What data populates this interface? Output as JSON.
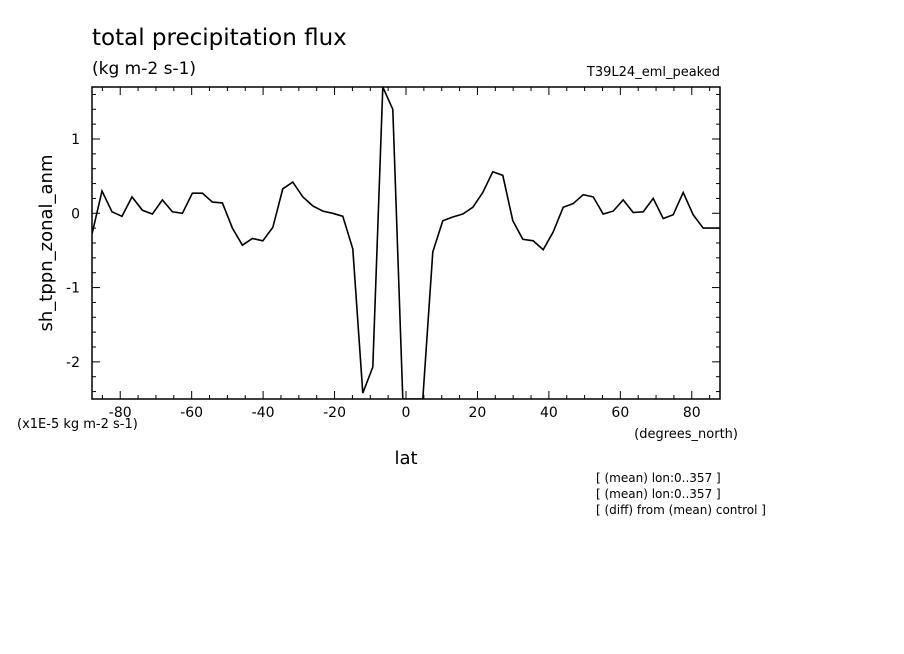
{
  "chart_data": {
    "type": "line",
    "title": "total precipitation flux",
    "subtitle": "(kg m-2 s-1)",
    "dataset_label": "T39L24_eml_peaked",
    "xlabel": "lat",
    "xunits": "(degrees_north)",
    "ylabel": "sh_tppn_zonal_anm",
    "yunits": "(x1E-5 kg m-2 s-1)",
    "xlim": [
      -87.9,
      87.9
    ],
    "ylim": [
      -2.5,
      1.7
    ],
    "xticks": [
      -80,
      -60,
      -40,
      -20,
      0,
      20,
      40,
      60,
      80
    ],
    "xtick_labels": [
      "-80",
      "-60",
      "-40",
      "-20",
      "0",
      "20",
      "40",
      "60",
      "80"
    ],
    "yticks": [
      -2,
      -1,
      0,
      1
    ],
    "ytick_labels": [
      "-2",
      "-1",
      "0",
      "1"
    ],
    "x": [
      -87.9,
      -85.1,
      -82.3,
      -79.5,
      -76.7,
      -73.8,
      -71.0,
      -68.2,
      -65.4,
      -62.6,
      -59.8,
      -57.0,
      -54.2,
      -51.4,
      -48.6,
      -45.8,
      -43.0,
      -40.1,
      -37.3,
      -34.5,
      -31.7,
      -28.9,
      -26.1,
      -23.3,
      -20.5,
      -17.7,
      -14.9,
      -12.1,
      -9.3,
      -6.5,
      -3.7,
      -0.9,
      1.9,
      4.7,
      7.5,
      10.3,
      13.1,
      15.9,
      18.7,
      21.5,
      24.3,
      27.1,
      29.9,
      32.7,
      35.6,
      38.4,
      41.2,
      44.0,
      46.8,
      49.6,
      52.4,
      55.2,
      58.0,
      60.8,
      63.6,
      66.4,
      69.2,
      72.0,
      74.8,
      77.6,
      80.4,
      83.2,
      86.0,
      87.9
    ],
    "series": [
      {
        "values": [
          -0.28,
          0.3,
          0.02,
          -0.04,
          0.22,
          0.04,
          -0.01,
          0.18,
          0.02,
          0.0,
          0.27,
          0.27,
          0.15,
          0.14,
          -0.2,
          -0.43,
          -0.34,
          -0.37,
          -0.19,
          0.33,
          0.42,
          0.22,
          0.1,
          0.03,
          0.0,
          -0.04,
          -0.48,
          -2.42,
          -2.07,
          1.7,
          1.4,
          -2.5,
          -2.5,
          -2.5,
          -0.52,
          -0.1,
          -0.05,
          -0.01,
          0.08,
          0.28,
          0.56,
          0.51,
          -0.1,
          -0.35,
          -0.37,
          -0.49,
          -0.25,
          0.08,
          0.13,
          0.25,
          0.22,
          -0.01,
          0.03,
          0.18,
          0.01,
          0.02,
          0.2,
          -0.07,
          -0.02,
          0.28,
          -0.02,
          -0.2,
          -0.2,
          -0.2
        ]
      }
    ],
    "grid": false,
    "notes": [
      "[ (mean) lon:0..357 ]",
      "[ (mean) lon:0..357 ]",
      "[ (diff) from (mean) control ]"
    ]
  }
}
